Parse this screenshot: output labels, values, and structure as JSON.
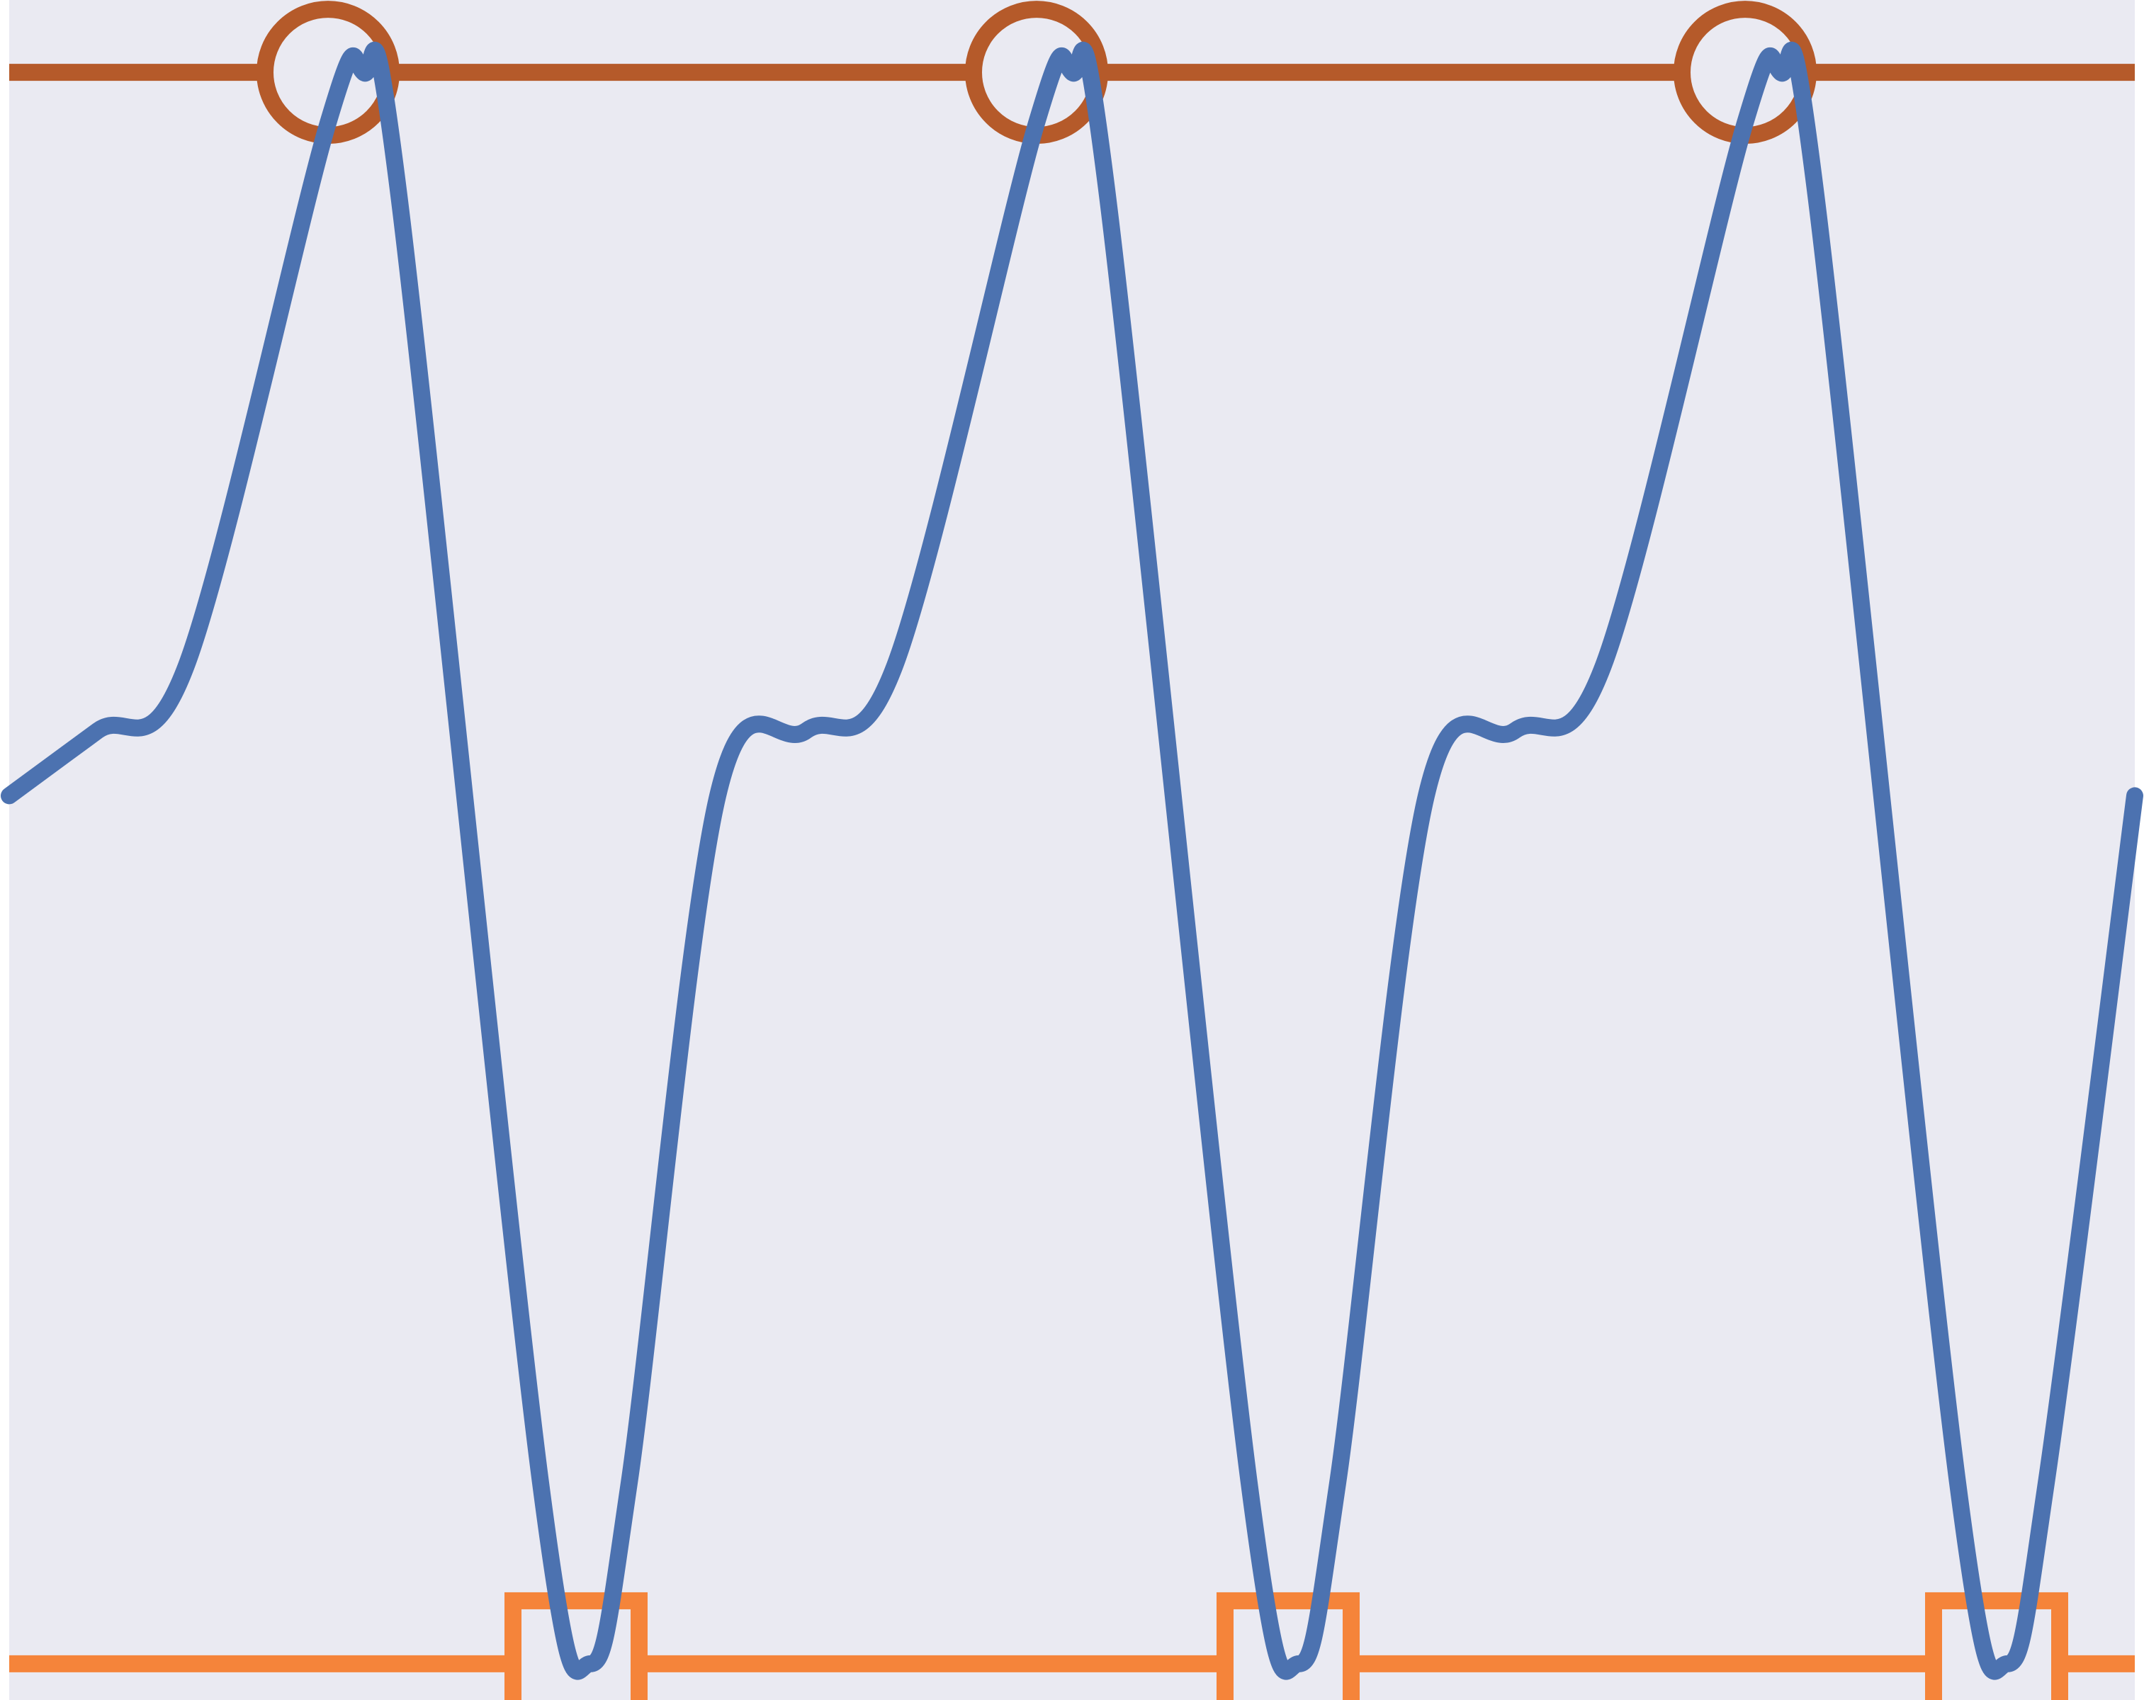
{
  "chart_data": {
    "type": "line",
    "title": "",
    "xlabel": "",
    "ylabel": "",
    "grid": false,
    "legend": "none",
    "xlim": [
      0,
      3
    ],
    "ylim": [
      -1.25,
      1.1
    ],
    "colors": {
      "background": "#eaeaf2",
      "signal": "#4c72b0",
      "max_level": "#b55a2a",
      "min_level": "#f5843a"
    },
    "series": [
      {
        "role": "signal",
        "x": [
          0.0,
          0.125,
          0.25,
          0.45,
          0.5,
          0.55,
          0.75,
          0.82,
          0.875,
          1.0,
          1.125,
          1.25,
          1.45,
          1.5,
          1.55,
          1.75,
          1.82,
          1.875,
          2.0,
          2.125,
          2.25,
          2.45,
          2.5,
          2.55,
          2.75,
          2.82,
          2.875,
          3.0
        ],
        "y": [
          0.0,
          0.09,
          0.18,
          0.93,
          1.0,
          0.83,
          -0.95,
          -1.2,
          -0.95,
          0.0,
          0.09,
          0.18,
          0.93,
          1.0,
          0.83,
          -0.95,
          -1.2,
          -0.95,
          0.0,
          0.09,
          0.18,
          0.93,
          1.0,
          0.83,
          -0.95,
          -1.2,
          -0.95,
          0.0
        ]
      },
      {
        "role": "max_level",
        "marker": "circle",
        "y": 1.0,
        "marker_x": [
          0.45,
          1.45,
          2.45
        ]
      },
      {
        "role": "min_level",
        "marker": "square",
        "y": -1.2,
        "marker_x": [
          0.8,
          1.805,
          2.805
        ]
      }
    ]
  }
}
